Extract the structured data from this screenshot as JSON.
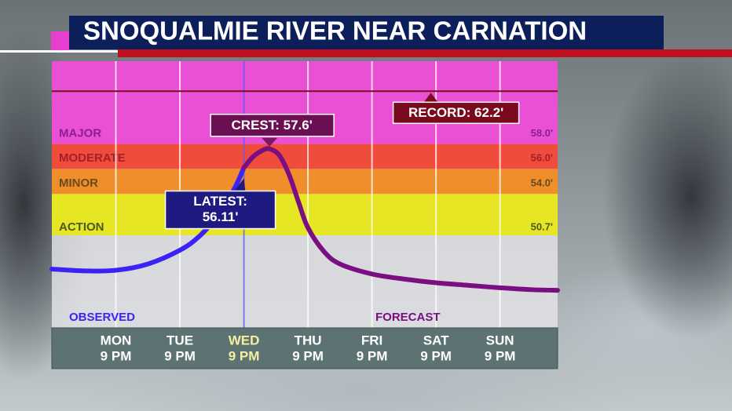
{
  "chart_data": {
    "type": "line",
    "title": "SNOQUALMIE RIVER NEAR CARNATION",
    "xlim": [
      -1,
      6.9
    ],
    "ylim": [
      43.3,
      64.6
    ],
    "xticks": [
      {
        "value": 0,
        "label": "MON",
        "sublabel": "9 PM"
      },
      {
        "value": 1,
        "label": "TUE",
        "sublabel": "9 PM"
      },
      {
        "value": 2,
        "label": "WED",
        "sublabel": "9 PM"
      },
      {
        "value": 3,
        "label": "THU",
        "sublabel": "9 PM"
      },
      {
        "value": 4,
        "label": "FRI",
        "sublabel": "9 PM"
      },
      {
        "value": 5,
        "label": "SAT",
        "sublabel": "9 PM"
      },
      {
        "value": 6,
        "label": "SUN",
        "sublabel": "9 PM"
      }
    ],
    "highlight_xtick": 2,
    "grid": true,
    "flood_stages": [
      {
        "name": "ACTION",
        "value": 50.7,
        "label": "50.7'",
        "color": "#e6e624",
        "text_color": "#4b5a1d"
      },
      {
        "name": "MINOR",
        "value": 54.0,
        "label": "54.0'",
        "color": "#ef8e2b",
        "text_color": "#6b4a1e"
      },
      {
        "name": "MODERATE",
        "value": 56.0,
        "label": "56.0'",
        "color": "#ef4c3b",
        "text_color": "#a51f2b"
      },
      {
        "name": "MAJOR",
        "value": 58.0,
        "label": "58.0'",
        "color": "#ea50d5",
        "text_color": "#8e1c94"
      }
    ],
    "series": [
      {
        "name": "OBSERVED",
        "color": "#3b22f5",
        "x": [
          -1,
          -0.5,
          0,
          0.5,
          1,
          1.3,
          1.6,
          1.85,
          2.0
        ],
        "values": [
          48.0,
          47.85,
          47.9,
          48.4,
          49.5,
          50.6,
          52.3,
          54.4,
          56.11
        ]
      },
      {
        "name": "FORECAST",
        "color": "#7a0f82",
        "x": [
          2.0,
          2.15,
          2.3,
          2.4,
          2.55,
          2.7,
          2.85,
          3.0,
          3.25,
          3.5,
          4,
          4.5,
          5,
          5.5,
          6,
          6.5,
          6.9
        ],
        "values": [
          56.11,
          57.0,
          57.5,
          57.6,
          57.1,
          55.6,
          53.4,
          51.3,
          49.4,
          48.4,
          47.6,
          47.2,
          46.9,
          46.7,
          46.5,
          46.35,
          46.3
        ]
      }
    ],
    "crest": {
      "label": "CREST:  57.6'",
      "value": 57.6,
      "x": 2.4
    },
    "latest": {
      "heading": "LATEST:",
      "label": "56.11'",
      "value": 56.11,
      "x": 2.0
    },
    "record": {
      "label": "RECORD: 62.2'",
      "value": 62.2,
      "x": 4.92
    }
  }
}
